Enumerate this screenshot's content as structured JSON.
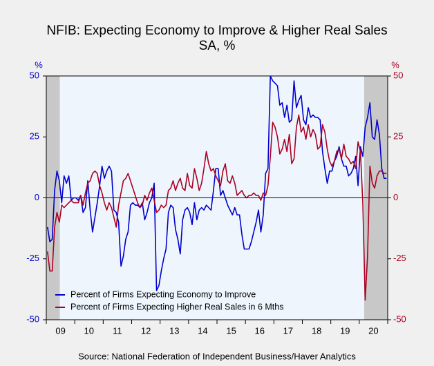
{
  "chart_data": {
    "type": "line",
    "title": "NFIB: Expecting Economy to Improve & Higher Real Sales",
    "subtitle": "SA, %",
    "y_label": "%",
    "y2_label": "%",
    "source": "Source:  National Federation of Independent Business/Haver Analytics",
    "categories": [
      null,
      null,
      null,
      null,
      null,
      "09",
      null,
      null,
      null,
      null,
      null,
      null,
      null,
      null,
      null,
      null,
      null,
      "10",
      null,
      null,
      null,
      null,
      null,
      null,
      null,
      null,
      null,
      null,
      null,
      "11",
      null,
      null,
      null,
      null,
      null,
      null,
      null,
      null,
      null,
      null,
      null,
      "12",
      null,
      null,
      null,
      null,
      null,
      null,
      null,
      null,
      null,
      null,
      null,
      "13",
      null,
      null,
      null,
      null,
      null,
      null,
      null,
      null,
      null,
      null,
      null,
      "14",
      null,
      null,
      null,
      null,
      null,
      null,
      null,
      null,
      null,
      null,
      null,
      "15",
      null,
      null,
      null,
      null,
      null,
      null,
      null,
      null,
      null,
      null,
      null,
      "16",
      null,
      null,
      null,
      null,
      null,
      null,
      null,
      null,
      null,
      null,
      null,
      "17",
      null,
      null,
      null,
      null,
      null,
      null,
      null,
      null,
      null,
      null,
      null,
      "18",
      null,
      null,
      null,
      null,
      null,
      null,
      null,
      null,
      null,
      null,
      null,
      "19",
      null,
      null,
      null,
      null,
      null,
      null,
      null,
      null,
      null,
      null,
      null,
      "20",
      null,
      null,
      null,
      null,
      null,
      null
    ],
    "ylim": [
      -50,
      50
    ],
    "yticks": [
      50,
      25,
      0,
      -25,
      -50
    ],
    "y2lim": [
      -50,
      50
    ],
    "y2ticks": [
      50,
      25,
      0,
      -25,
      -50
    ],
    "series": [
      {
        "name": "Percent of Firms Expecting Economy to Improve",
        "color": "#0000cc",
        "values": [
          -12,
          -18,
          -17,
          3,
          11,
          7,
          -2,
          9,
          6,
          9,
          -1,
          0,
          0,
          -1,
          1,
          -6,
          -4,
          7,
          -5,
          -14,
          -8,
          -2,
          5,
          13,
          8,
          11,
          13,
          11,
          -5,
          -6,
          -10,
          -28,
          -24,
          -17,
          -14,
          -3,
          -2,
          -3,
          -3,
          -4,
          -2,
          -9,
          -6,
          -2,
          0,
          6,
          -38,
          -36,
          -30,
          -25,
          -21,
          -6,
          -3,
          -4,
          -13,
          -17,
          -23,
          -9,
          -5,
          -4,
          -6,
          -11,
          -2,
          -9,
          -5,
          -4,
          -5,
          -3,
          -4,
          -5,
          3,
          12,
          12,
          1,
          3,
          0,
          -3,
          -5,
          -7,
          -4,
          -7,
          -7,
          -15,
          -21,
          -21,
          -21,
          -18,
          -14,
          -10,
          -5,
          -14,
          -7,
          10,
          12,
          50,
          48,
          47,
          46,
          38,
          39,
          33,
          38,
          31,
          32,
          48,
          37,
          40,
          42,
          32,
          30,
          37,
          33,
          34,
          33,
          33,
          32,
          19,
          12,
          6,
          11,
          11,
          15,
          17,
          21,
          16,
          13,
          13,
          9,
          10,
          12,
          17,
          5,
          21,
          17,
          29,
          33,
          39,
          25,
          24,
          32,
          26,
          12,
          8,
          8
        ]
      },
      {
        "name": "Percent of Firms Expecting Higher Real Sales in 6 Mths",
        "color": "#aa0022",
        "axis": "y2",
        "values": [
          -22,
          -30,
          -30,
          -12,
          -6,
          -10,
          -3,
          -4,
          -3,
          -2,
          -1,
          -2,
          -2,
          -2,
          1,
          -3,
          2,
          6,
          7,
          10,
          11,
          10,
          5,
          2,
          -2,
          -5,
          -2,
          -4,
          -8,
          -12,
          -3,
          2,
          7,
          8,
          10,
          7,
          4,
          1,
          -2,
          -4,
          -3,
          1,
          -1,
          2,
          4,
          -1,
          -6,
          -5,
          -3,
          -4,
          -3,
          3,
          4,
          7,
          3,
          6,
          8,
          4,
          3,
          10,
          5,
          4,
          12,
          8,
          3,
          6,
          12,
          19,
          14,
          11,
          12,
          9,
          7,
          5,
          11,
          14,
          7,
          6,
          9,
          6,
          1,
          2,
          3,
          1,
          0,
          1,
          1,
          2,
          1,
          1,
          -1,
          2,
          1,
          5,
          17,
          31,
          29,
          25,
          18,
          20,
          24,
          19,
          26,
          14,
          16,
          29,
          34,
          27,
          29,
          24,
          30,
          25,
          28,
          26,
          20,
          21,
          30,
          27,
          20,
          15,
          13,
          15,
          19,
          20,
          16,
          22,
          17,
          16,
          14,
          15,
          12,
          23,
          19,
          -2,
          -42,
          -24,
          13,
          6,
          4,
          9,
          11,
          11,
          10,
          10
        ]
      }
    ],
    "legend": "lower left",
    "zero_line": true
  }
}
